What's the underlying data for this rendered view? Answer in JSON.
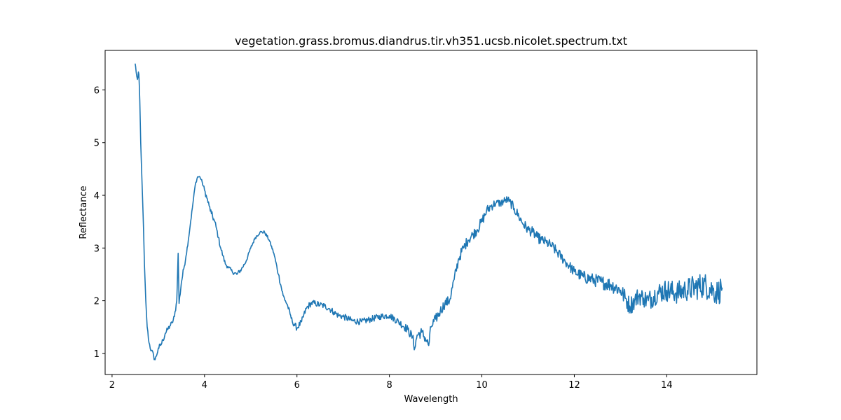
{
  "chart_data": {
    "type": "line",
    "title": "vegetation.grass.bromus.diandrus.tir.vh351.ucsb.nicolet.spectrum.txt",
    "xlabel": "Wavelength",
    "ylabel": "Reflectance",
    "xlim": [
      1.85,
      15.95
    ],
    "ylim": [
      0.6,
      6.75
    ],
    "xticks": [
      2,
      4,
      6,
      8,
      10,
      12,
      14
    ],
    "yticks": [
      1,
      2,
      3,
      4,
      5,
      6
    ],
    "grid": false,
    "series": [
      {
        "color": "#1f77b4",
        "x": [
          2.5,
          2.52,
          2.55,
          2.58,
          2.6,
          2.62,
          2.65,
          2.68,
          2.7,
          2.73,
          2.76,
          2.8,
          2.85,
          2.9,
          2.93,
          2.96,
          3.0,
          3.05,
          3.1,
          3.15,
          3.2,
          3.25,
          3.3,
          3.35,
          3.4,
          3.43,
          3.45,
          3.5,
          3.55,
          3.6,
          3.65,
          3.7,
          3.75,
          3.8,
          3.85,
          3.9,
          3.95,
          4.0,
          4.05,
          4.1,
          4.15,
          4.2,
          4.25,
          4.3,
          4.35,
          4.4,
          4.45,
          4.5,
          4.6,
          4.7,
          4.8,
          4.9,
          5.0,
          5.1,
          5.2,
          5.3,
          5.4,
          5.5,
          5.6,
          5.7,
          5.75,
          5.8,
          5.85,
          5.9,
          6.0,
          6.1,
          6.2,
          6.3,
          6.4,
          6.5,
          6.6,
          6.7,
          6.8,
          6.9,
          7.0,
          7.2,
          7.4,
          7.6,
          7.8,
          8.0,
          8.2,
          8.4,
          8.5,
          8.55,
          8.6,
          8.7,
          8.8,
          8.85,
          8.9,
          9.0,
          9.1,
          9.2,
          9.3,
          9.4,
          9.5,
          9.6,
          9.7,
          9.8,
          9.9,
          10.0,
          10.1,
          10.2,
          10.3,
          10.4,
          10.5,
          10.55,
          10.6,
          10.7,
          10.8,
          10.9,
          11.0,
          11.1,
          11.2,
          11.3,
          11.4,
          11.5,
          11.6,
          11.7,
          11.8,
          11.9,
          12.0,
          12.2,
          12.4,
          12.6,
          12.8,
          13.0,
          13.1,
          13.2,
          13.3,
          13.4,
          13.5,
          13.6,
          13.8,
          14.0,
          14.2,
          14.4,
          14.6,
          14.8,
          15.0,
          15.1,
          15.2,
          15.3,
          15.35
        ],
        "y": [
          6.5,
          6.35,
          6.2,
          6.3,
          5.8,
          5.0,
          4.2,
          3.4,
          2.7,
          2.0,
          1.5,
          1.2,
          1.05,
          0.95,
          0.88,
          0.95,
          1.1,
          1.15,
          1.25,
          1.38,
          1.45,
          1.52,
          1.58,
          1.7,
          2.0,
          2.9,
          1.95,
          2.35,
          2.6,
          2.85,
          3.15,
          3.5,
          3.85,
          4.2,
          4.35,
          4.35,
          4.25,
          4.1,
          3.95,
          3.8,
          3.65,
          3.55,
          3.4,
          3.2,
          3.0,
          2.85,
          2.7,
          2.65,
          2.55,
          2.5,
          2.6,
          2.75,
          3.0,
          3.2,
          3.3,
          3.3,
          3.15,
          2.9,
          2.5,
          2.1,
          2.0,
          1.9,
          1.75,
          1.6,
          1.48,
          1.6,
          1.85,
          1.95,
          1.95,
          1.92,
          1.9,
          1.85,
          1.78,
          1.72,
          1.7,
          1.62,
          1.6,
          1.65,
          1.7,
          1.72,
          1.6,
          1.45,
          1.3,
          1.1,
          1.35,
          1.4,
          1.25,
          1.15,
          1.5,
          1.65,
          1.8,
          1.95,
          2.0,
          2.4,
          2.8,
          3.0,
          3.15,
          3.25,
          3.35,
          3.5,
          3.7,
          3.8,
          3.85,
          3.85,
          3.9,
          3.92,
          3.88,
          3.75,
          3.6,
          3.45,
          3.35,
          3.3,
          3.2,
          3.15,
          3.1,
          3.05,
          2.95,
          2.85,
          2.75,
          2.65,
          2.55,
          2.45,
          2.4,
          2.35,
          2.3,
          2.2,
          2.05,
          1.9,
          2.0,
          2.1,
          2.05,
          2.0,
          2.15,
          2.2,
          2.15,
          2.2,
          2.25,
          2.3,
          2.2,
          2.15,
          2.25,
          2.35,
          2.3
        ],
        "noise": [
          0.02,
          0.08,
          0.02,
          0.1,
          0.02,
          0.01,
          0.01,
          0.01,
          0.01,
          0.02,
          0.04,
          0.05,
          0.06,
          0.06,
          0.05,
          0.05,
          0.05,
          0.06,
          0.06,
          0.05,
          0.05,
          0.05,
          0.05,
          0.05,
          0.05,
          0.0,
          0.05,
          0.06,
          0.06,
          0.04,
          0.03,
          0.03,
          0.03,
          0.03,
          0.02,
          0.02,
          0.03,
          0.05,
          0.06,
          0.06,
          0.06,
          0.07,
          0.06,
          0.05,
          0.05,
          0.05,
          0.04,
          0.04,
          0.04,
          0.04,
          0.04,
          0.03,
          0.03,
          0.03,
          0.03,
          0.03,
          0.03,
          0.03,
          0.05,
          0.05,
          0.05,
          0.05,
          0.05,
          0.05,
          0.06,
          0.06,
          0.06,
          0.06,
          0.06,
          0.06,
          0.06,
          0.06,
          0.06,
          0.06,
          0.06,
          0.06,
          0.06,
          0.06,
          0.06,
          0.06,
          0.07,
          0.08,
          0.1,
          0.1,
          0.1,
          0.1,
          0.1,
          0.1,
          0.1,
          0.1,
          0.1,
          0.1,
          0.1,
          0.1,
          0.1,
          0.1,
          0.1,
          0.1,
          0.1,
          0.1,
          0.1,
          0.1,
          0.08,
          0.08,
          0.08,
          0.08,
          0.08,
          0.1,
          0.1,
          0.1,
          0.1,
          0.1,
          0.1,
          0.1,
          0.1,
          0.1,
          0.1,
          0.1,
          0.1,
          0.1,
          0.1,
          0.12,
          0.12,
          0.13,
          0.14,
          0.15,
          0.17,
          0.18,
          0.18,
          0.18,
          0.18,
          0.2,
          0.2,
          0.22,
          0.22,
          0.22,
          0.25,
          0.25,
          0.25,
          0.25,
          0.25
        ]
      }
    ]
  }
}
